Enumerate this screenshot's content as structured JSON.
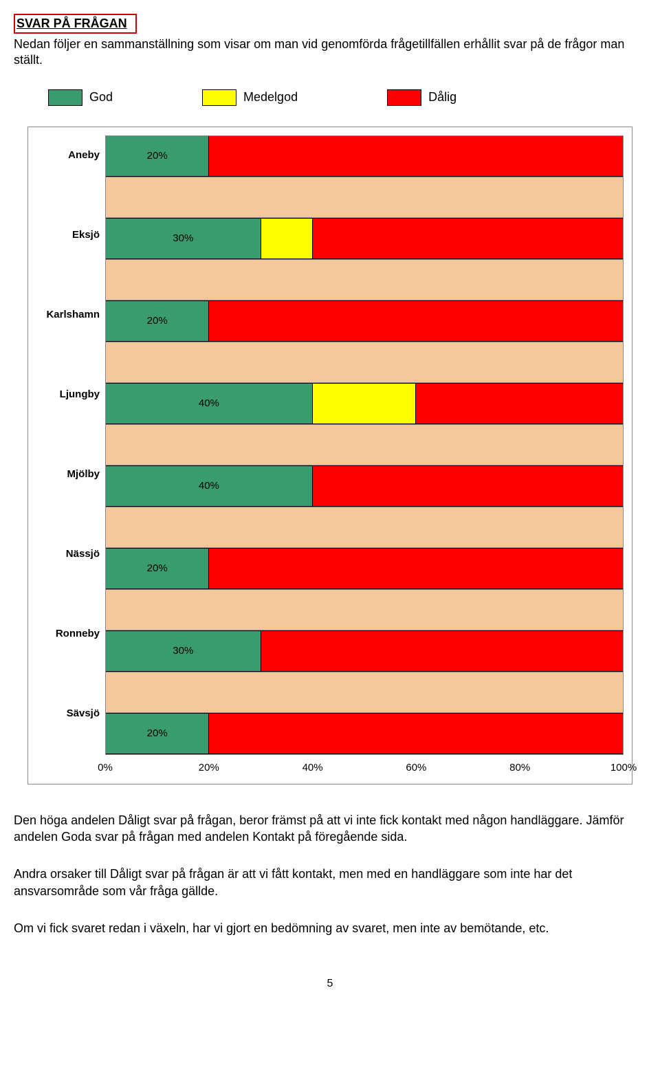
{
  "title": "SVAR PÅ FRÅGAN",
  "intro": "Nedan följer en sammanställning som visar om man vid genomförda frågetillfällen erhållit svar på de frågor man ställt.",
  "legend": {
    "items": [
      {
        "label": "God",
        "color": "#3a9b6f"
      },
      {
        "label": "Medelgod",
        "color": "#ffff00"
      },
      {
        "label": "Dålig",
        "color": "#ff0000"
      }
    ]
  },
  "chart": {
    "plot_bg": "#f4c89a",
    "grid_color": "#888888",
    "xticks": [
      "0%",
      "20%",
      "40%",
      "60%",
      "80%",
      "100%"
    ],
    "xtick_positions": [
      0,
      20,
      40,
      60,
      80,
      100
    ],
    "categories": [
      "Aneby",
      "Eksjö",
      "Karlshamn",
      "Ljungby",
      "Mjölby",
      "Nässjö",
      "Ronneby",
      "Sävsjö"
    ],
    "series_colors": {
      "god": "#3a9b6f",
      "medelgod": "#ffff00",
      "dalig": "#ff0000"
    },
    "rows": [
      {
        "label": "Aneby",
        "god": 20,
        "medelgod": 0,
        "dalig": 80,
        "show_label": "20%"
      },
      {
        "label": "Eksjö",
        "god": 30,
        "medelgod": 10,
        "dalig": 60,
        "show_label": "30%"
      },
      {
        "label": "Karlshamn",
        "god": 20,
        "medelgod": 0,
        "dalig": 80,
        "show_label": "20%"
      },
      {
        "label": "Ljungby",
        "god": 40,
        "medelgod": 20,
        "dalig": 40,
        "show_label": "40%"
      },
      {
        "label": "Mjölby",
        "god": 40,
        "medelgod": 0,
        "dalig": 60,
        "show_label": "40%"
      },
      {
        "label": "Nässjö",
        "god": 20,
        "medelgod": 0,
        "dalig": 80,
        "show_label": "20%"
      },
      {
        "label": "Ronneby",
        "god": 30,
        "medelgod": 0,
        "dalig": 70,
        "show_label": "30%"
      },
      {
        "label": "Sävsjö",
        "god": 20,
        "medelgod": 0,
        "dalig": 80,
        "show_label": "20%"
      }
    ]
  },
  "body": {
    "p1": "Den höga andelen Dåligt svar på frågan, beror främst på att vi inte fick kontakt med någon handläggare. Jämför andelen Goda svar på frågan med andelen Kontakt på föregående sida.",
    "p2": "Andra orsaker till Dåligt svar på frågan är att vi fått kontakt, men med en handläggare som inte har det ansvarsområde som vår fråga gällde.",
    "p3": "Om vi fick svaret redan i växeln, har vi gjort en bedömning av svaret, men inte av bemötande, etc."
  },
  "page_number": "5"
}
